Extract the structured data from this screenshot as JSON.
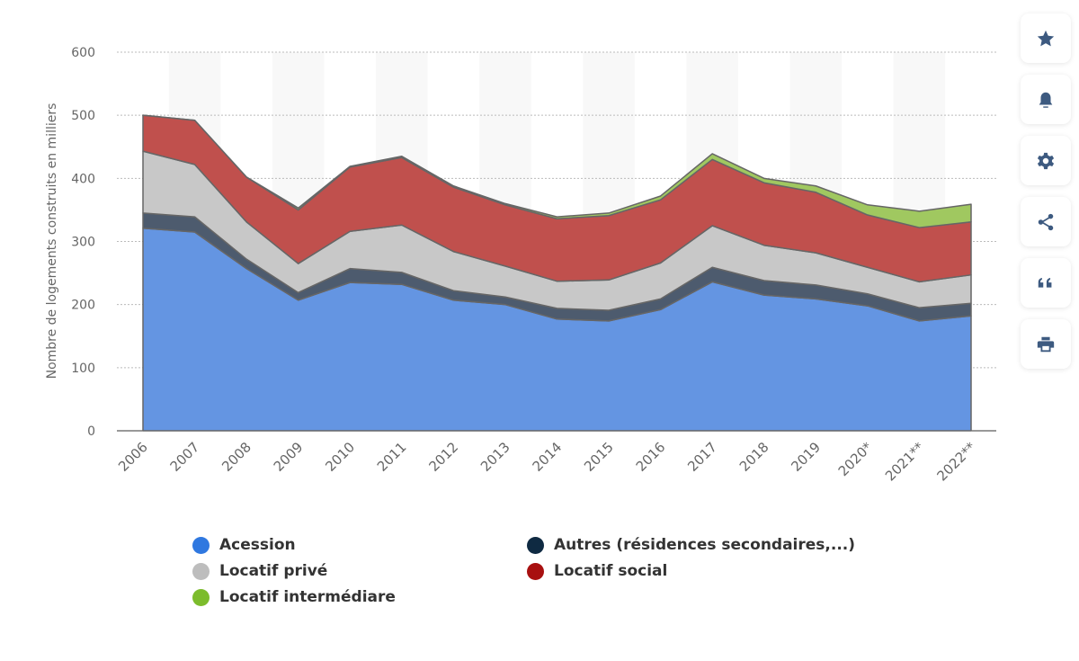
{
  "chart_data": {
    "type": "area",
    "stacked": true,
    "title": "",
    "xlabel": "",
    "ylabel": "Nombre de logements construits en milliers",
    "ylim": [
      0,
      600
    ],
    "yticks": [
      "0",
      "100",
      "200",
      "300",
      "400",
      "500",
      "600"
    ],
    "grid": true,
    "legend_position": "bottom",
    "categories": [
      "2006",
      "2007",
      "2008",
      "2009",
      "2010",
      "2011",
      "2012",
      "2013",
      "2014",
      "2015",
      "2016",
      "2017",
      "2018",
      "2019",
      "2020*",
      "2021**",
      "2022**"
    ],
    "series": [
      {
        "name": "Acession",
        "color": "#6495e2",
        "legend_color": "#2f78e0",
        "values": [
          321,
          315,
          257,
          207,
          235,
          232,
          207,
          200,
          177,
          174,
          192,
          236,
          215,
          209,
          198,
          174,
          182
        ]
      },
      {
        "name": "Autres (résidences secondaires,...)",
        "color": "#4d5b6e",
        "legend_color": "#0f2a42",
        "values": [
          24,
          24,
          15,
          12,
          22,
          19,
          15,
          12,
          17,
          17,
          17,
          23,
          23,
          22,
          19,
          21,
          20
        ]
      },
      {
        "name": "Locatif privé",
        "color": "#c8c8c8",
        "legend_color": "#bdbdbd",
        "values": [
          98,
          83,
          59,
          46,
          59,
          75,
          62,
          49,
          43,
          48,
          57,
          66,
          56,
          51,
          42,
          41,
          45
        ]
      },
      {
        "name": "Locatif social",
        "color": "#c0504d",
        "legend_color": "#a81010",
        "values": [
          57,
          70,
          71,
          85,
          102,
          107,
          102,
          97,
          99,
          102,
          100,
          105,
          99,
          96,
          83,
          86,
          84
        ]
      },
      {
        "name": "Locatif intermédiare",
        "color": "#a0c860",
        "legend_color": "#7cbc2c",
        "values": [
          0,
          0,
          0,
          3,
          1,
          2,
          2,
          2,
          3,
          4,
          6,
          9,
          7,
          10,
          16,
          26,
          28
        ]
      }
    ]
  },
  "legend": {
    "acession": "Acession",
    "autres": "Autres (résidences secondaires,...)",
    "prive": "Locatif privé",
    "social": "Locatif social",
    "intermediaire": "Locatif intermédiare"
  },
  "toolbar": {
    "icons": [
      "star-icon",
      "bell-icon",
      "gear-icon",
      "share-icon",
      "quote-icon",
      "print-icon"
    ],
    "icon_color": "#3d5a80"
  }
}
